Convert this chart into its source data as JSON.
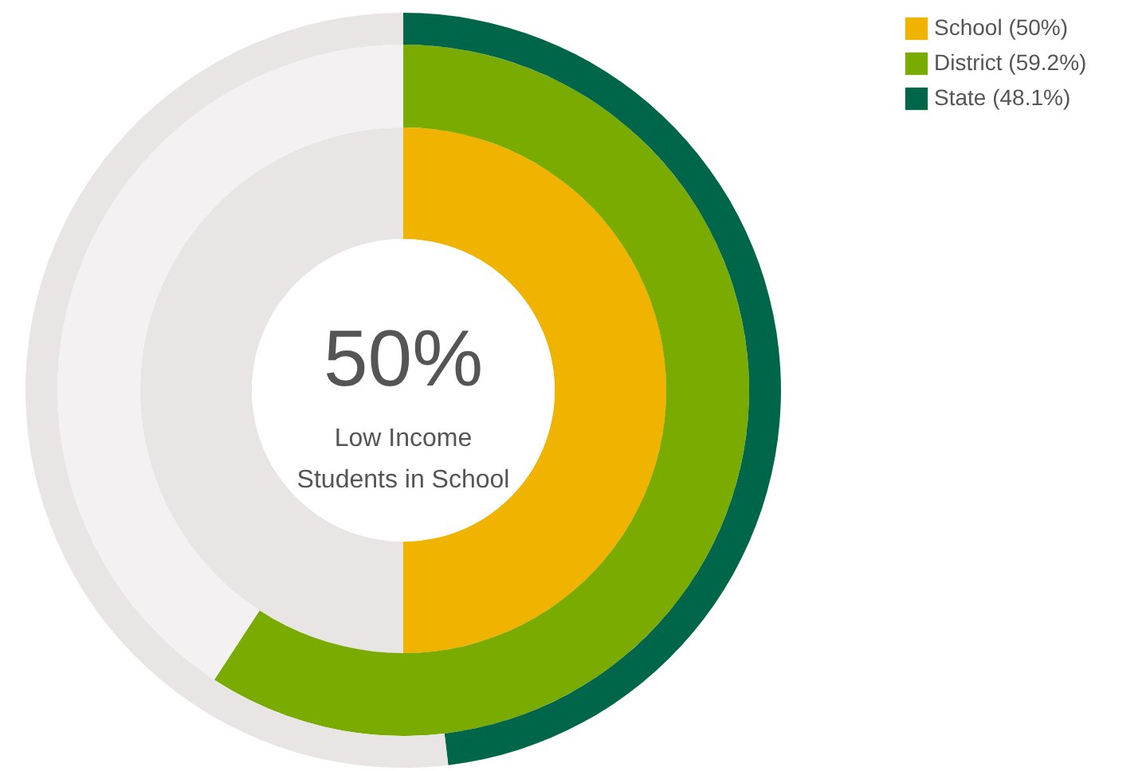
{
  "chart_data": {
    "type": "donut",
    "categories": [
      null,
      null
    ],
    "series": [
      {
        "name": "School (50%)",
        "color": "#f0b400",
        "values": [
          50,
          50
        ],
        "colors": [
          "#f0b400",
          "#e8e5e4"
        ]
      },
      {
        "name": "District (59.2%)",
        "color": "#7aab00",
        "values": [
          59.2,
          40.8
        ],
        "colors": [
          "#7aab00",
          "#f3f1f2"
        ]
      },
      {
        "name": "State (48.1%)",
        "color": "#00664a",
        "values": [
          48.1,
          51.9
        ],
        "colors": [
          "#00664a",
          "#e8e5e4"
        ]
      }
    ],
    "annotations": [
      "50%",
      "Low Income Students in School"
    ],
    "legend": "top right"
  }
}
